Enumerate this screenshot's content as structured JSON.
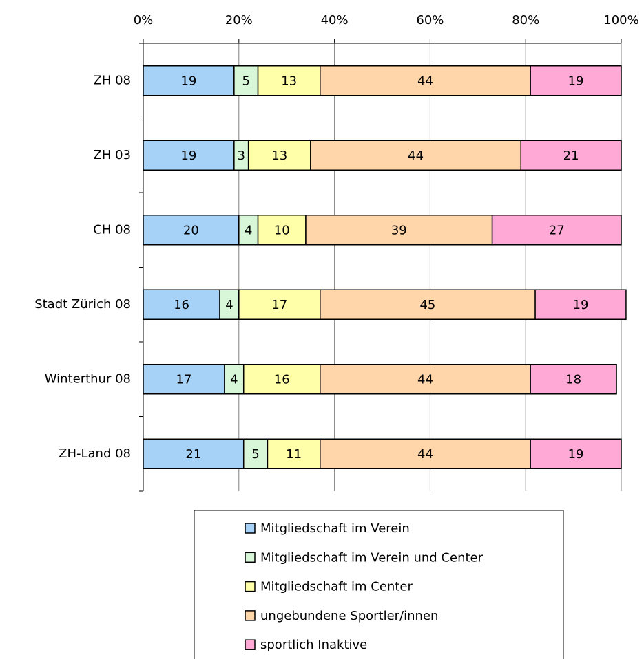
{
  "chart_data": {
    "type": "stacked-bar-horizontal",
    "categories": [
      "ZH 08",
      "ZH 03",
      "CH 08",
      "Stadt Zürich 08",
      "Winterthur 08",
      "ZH-Land 08"
    ],
    "series": [
      {
        "name": "Mitgliedschaft im Verein",
        "color": "#a6d2f7",
        "values": [
          19,
          19,
          20,
          16,
          17,
          21
        ]
      },
      {
        "name": "Mitgliedschaft im Verein und Center",
        "color": "#d8f6d8",
        "values": [
          5,
          3,
          4,
          4,
          4,
          5
        ]
      },
      {
        "name": "Mitgliedschaft im Center",
        "color": "#ffffaa",
        "values": [
          13,
          13,
          10,
          17,
          16,
          11
        ]
      },
      {
        "name": "ungebundene Sportler/innen",
        "color": "#ffd5aa",
        "values": [
          44,
          44,
          39,
          45,
          44,
          44
        ]
      },
      {
        "name": "sportlich Inaktive",
        "color": "#ffaad6",
        "values": [
          19,
          21,
          27,
          19,
          18,
          19
        ]
      }
    ],
    "xlim": [
      0,
      100
    ],
    "xticks": [
      {
        "value": 0,
        "label": "0%"
      },
      {
        "value": 20,
        "label": "20%"
      },
      {
        "value": 40,
        "label": "40%"
      },
      {
        "value": 60,
        "label": "60%"
      },
      {
        "value": 80,
        "label": "80%"
      },
      {
        "value": 100,
        "label": "100%"
      }
    ],
    "grid": true
  }
}
